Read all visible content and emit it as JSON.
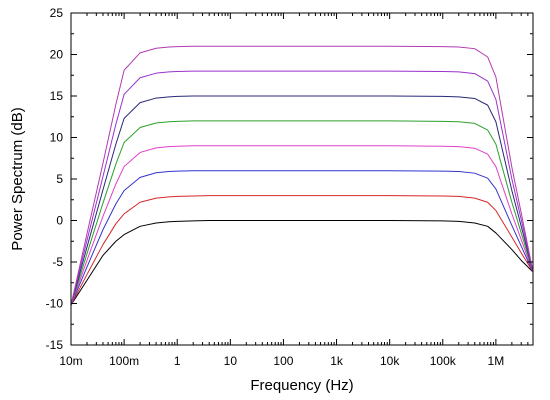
{
  "chart_data": {
    "type": "line",
    "xlabel": "Frequency (Hz)",
    "ylabel": "Power Spectrum (dB)",
    "x_scale": "log",
    "xlim": [
      0.01,
      5000000
    ],
    "ylim": [
      -15,
      25
    ],
    "grid": false,
    "x_ticks": [
      0.01,
      0.1,
      1,
      10,
      100,
      1000,
      10000,
      100000,
      1000000
    ],
    "x_tick_labels": [
      "10m",
      "100m",
      "1",
      "10",
      "100",
      "1k",
      "10k",
      "100k",
      "1M"
    ],
    "y_ticks": [
      -15,
      -10,
      -5,
      0,
      5,
      10,
      15,
      20,
      25
    ],
    "y_tick_labels": [
      "-15",
      "-10",
      "-5",
      "0",
      "5",
      "10",
      "15",
      "20",
      "25"
    ],
    "x": [
      0.01,
      0.02,
      0.04,
      0.07,
      0.1,
      0.2,
      0.4,
      0.7,
      1,
      2,
      4,
      10,
      100,
      1000,
      10000,
      100000,
      200000,
      400000,
      700000,
      1000000,
      2000000,
      3000000,
      5000000
    ],
    "series": [
      {
        "color": "#000000",
        "values": [
          -10.2,
          -7.2,
          -4.2,
          -2.5,
          -1.7,
          -0.7,
          -0.3,
          -0.15,
          -0.1,
          -0.05,
          0,
          0,
          0,
          0,
          0,
          -0.05,
          -0.1,
          -0.3,
          -0.7,
          -1.5,
          -3.5,
          -4.8,
          -6.2
        ]
      },
      {
        "color": "#d62728",
        "values": [
          -10.2,
          -6.5,
          -2.9,
          -0.4,
          0.8,
          2.2,
          2.7,
          2.85,
          2.9,
          2.95,
          3,
          3,
          3,
          3,
          3,
          2.95,
          2.9,
          2.7,
          2.2,
          1.2,
          -2.0,
          -3.9,
          -6.2
        ]
      },
      {
        "color": "#3333cc",
        "values": [
          -10.2,
          -5.6,
          -1.1,
          2.0,
          3.6,
          5.2,
          5.75,
          5.9,
          5.95,
          6,
          6,
          6,
          6,
          6,
          6,
          5.95,
          5.9,
          5.7,
          5.1,
          3.8,
          -0.6,
          -3.1,
          -6.2
        ]
      },
      {
        "color": "#e040c8",
        "values": [
          -10.2,
          -4.8,
          0.5,
          4.4,
          6.5,
          8.2,
          8.75,
          8.9,
          8.95,
          9,
          9,
          9,
          9,
          9,
          9,
          8.95,
          8.9,
          8.7,
          8.0,
          6.5,
          0.8,
          -2.3,
          -6.2
        ]
      },
      {
        "color": "#2ca02c",
        "values": [
          -10.2,
          -4.0,
          2.1,
          6.8,
          9.4,
          11.2,
          11.75,
          11.9,
          11.95,
          12,
          12,
          12,
          12,
          12,
          12,
          11.95,
          11.9,
          11.7,
          10.9,
          9.2,
          2.2,
          -1.5,
          -6.2
        ]
      },
      {
        "color": "#282878",
        "values": [
          -10.2,
          -3.2,
          3.7,
          9.2,
          12.3,
          14.2,
          14.75,
          14.9,
          14.95,
          15,
          15,
          15,
          15,
          15,
          15,
          14.95,
          14.9,
          14.7,
          13.9,
          11.9,
          3.6,
          -0.7,
          -6.2
        ]
      },
      {
        "color": "#9932cc",
        "values": [
          -10.2,
          -2.4,
          5.3,
          11.6,
          15.2,
          17.2,
          17.75,
          17.9,
          17.95,
          18,
          18,
          18,
          18,
          18,
          18,
          17.95,
          17.9,
          17.7,
          16.8,
          14.6,
          5.0,
          0.1,
          -6.2
        ]
      },
      {
        "color": "#b23ab2",
        "values": [
          -10.2,
          -1.6,
          6.9,
          14.0,
          18.1,
          20.2,
          20.75,
          20.9,
          20.95,
          21,
          21,
          21,
          21,
          21,
          21,
          20.95,
          20.9,
          20.7,
          19.7,
          17.3,
          6.4,
          0.9,
          -6.2
        ]
      }
    ]
  }
}
